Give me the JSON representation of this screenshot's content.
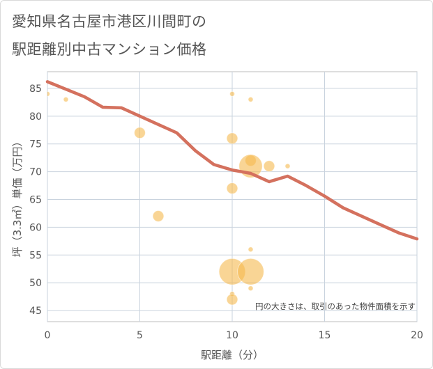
{
  "title": {
    "line1": "愛知県名古屋市港区川間町の",
    "line2": "駅距離別中古マンション価格"
  },
  "bubble_note": "円の大きさは、取引のあった物件面積を示す",
  "colors": {
    "line": "#d4715e",
    "bubble": "#f5b94f",
    "grid": "#c9d3de",
    "plot_border": "#bdbdbd"
  },
  "chart_data": {
    "type": "scatter",
    "xlabel": "駅距離（分）",
    "ylabel": "坪（3.3㎡）単価（万円）",
    "xlim": [
      0,
      20
    ],
    "ylim": [
      43,
      88
    ],
    "xticks": [
      0,
      5,
      10,
      15,
      20
    ],
    "yticks": [
      45,
      50,
      55,
      60,
      65,
      70,
      75,
      80,
      85
    ],
    "grid": true,
    "trend_line": {
      "x": [
        0,
        2,
        3,
        4,
        5,
        6,
        7,
        8,
        9,
        10,
        11,
        12,
        13,
        14,
        15,
        16,
        17,
        18,
        19,
        20
      ],
      "y": [
        86.2,
        83.5,
        81.6,
        81.5,
        80.0,
        78.5,
        77.0,
        73.8,
        71.3,
        70.3,
        69.7,
        68.2,
        69.2,
        67.5,
        65.6,
        63.5,
        62.0,
        60.5,
        59.0,
        57.9
      ]
    },
    "bubbles": [
      {
        "x": 0,
        "y": 84,
        "size": 1
      },
      {
        "x": 1,
        "y": 83,
        "size": 1
      },
      {
        "x": 5,
        "y": 77,
        "size": 3
      },
      {
        "x": 6,
        "y": 62,
        "size": 3
      },
      {
        "x": 10,
        "y": 84,
        "size": 1
      },
      {
        "x": 10,
        "y": 76,
        "size": 3
      },
      {
        "x": 10,
        "y": 67,
        "size": 3
      },
      {
        "x": 10,
        "y": 52,
        "size": 8
      },
      {
        "x": 10,
        "y": 48,
        "size": 1
      },
      {
        "x": 10,
        "y": 47,
        "size": 3
      },
      {
        "x": 11,
        "y": 83,
        "size": 1
      },
      {
        "x": 11,
        "y": 72,
        "size": 3
      },
      {
        "x": 11,
        "y": 71,
        "size": 7
      },
      {
        "x": 11,
        "y": 56,
        "size": 1
      },
      {
        "x": 11,
        "y": 52,
        "size": 8
      },
      {
        "x": 11,
        "y": 49,
        "size": 1
      },
      {
        "x": 12,
        "y": 71,
        "size": 3
      },
      {
        "x": 13,
        "y": 71,
        "size": 1
      }
    ]
  }
}
